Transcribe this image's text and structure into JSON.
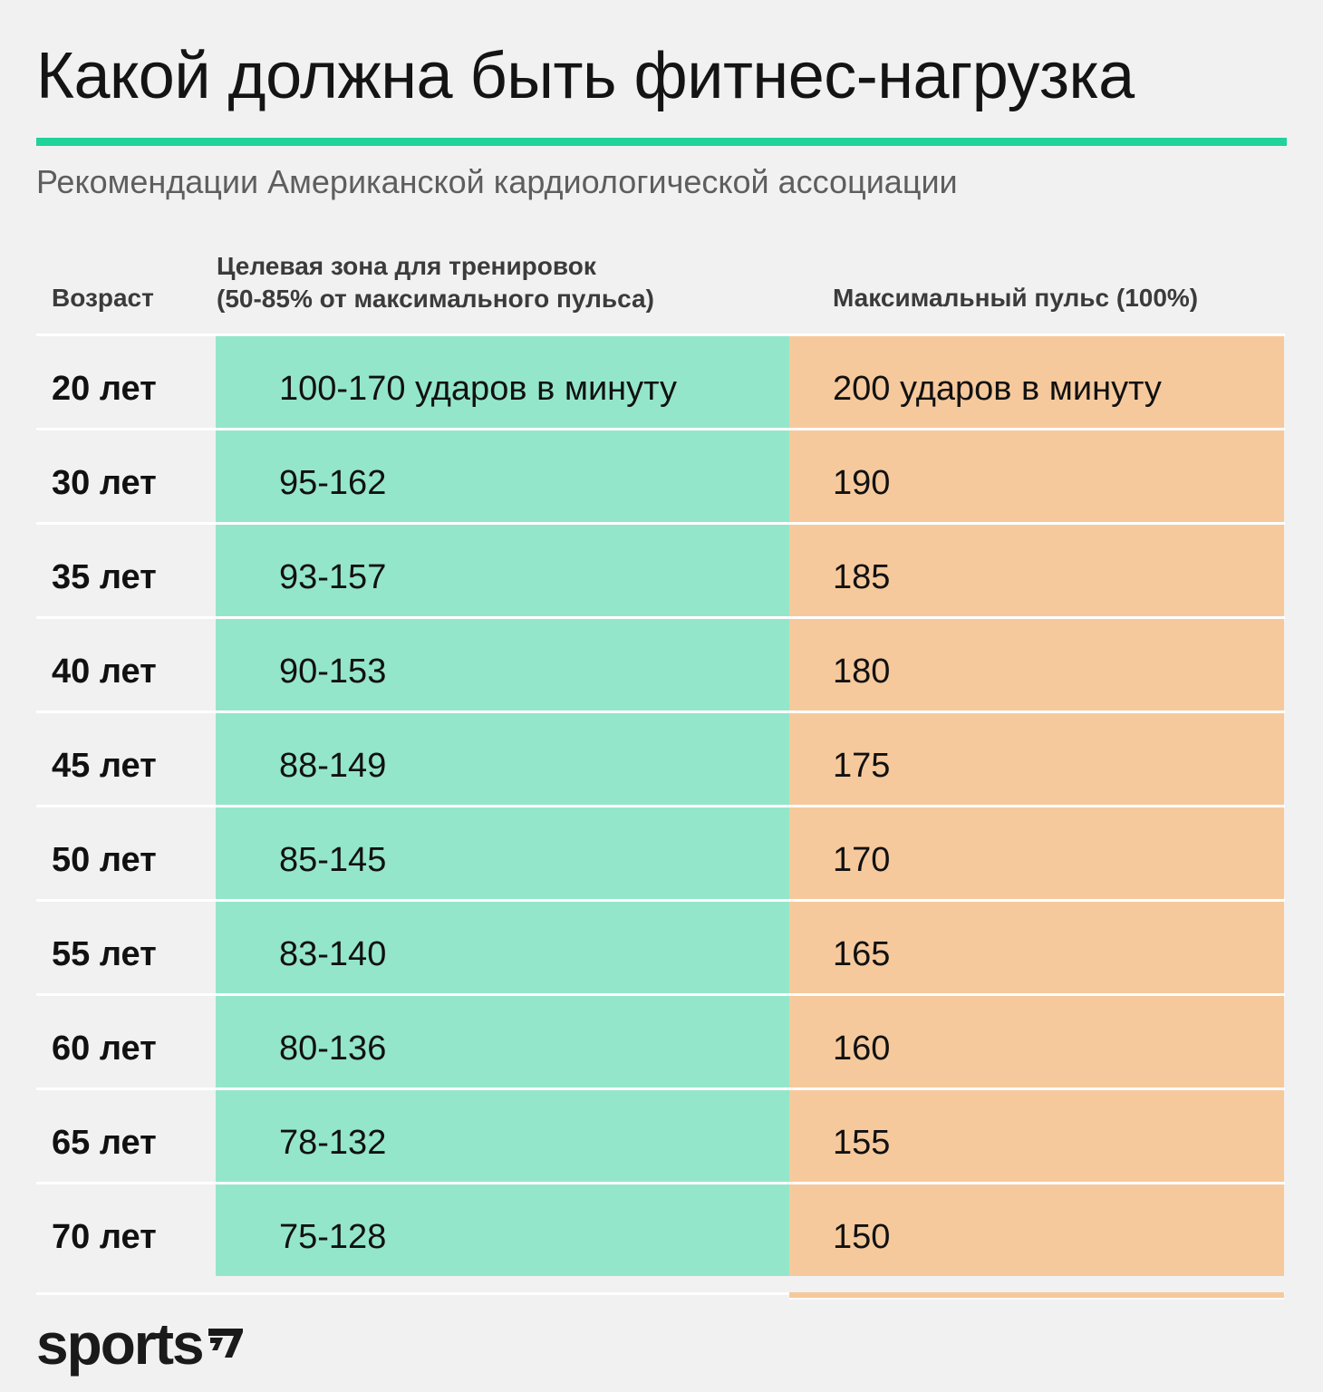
{
  "header": {
    "title": "Какой должна быть фитнес-нагрузка",
    "subtitle": "Рекомендации Американской кардиологической ассоциации"
  },
  "colors": {
    "accent": "#1fd39a",
    "zone_fill": "#94e6cb",
    "max_fill": "#f6c99c",
    "background": "#f1f1f1"
  },
  "table": {
    "headers": {
      "age": "Возраст",
      "zone_line1": "Целевая зона для тренировок",
      "zone_line2": "(50-85% от максимального пульса)",
      "max": "Максимальный пульс (100%)"
    },
    "rows": [
      {
        "age": "20 лет",
        "zone": "100-170 ударов в минуту",
        "max": "200 ударов в минуту"
      },
      {
        "age": "30 лет",
        "zone": "95-162",
        "max": "190"
      },
      {
        "age": "35 лет",
        "zone": "93-157",
        "max": "185"
      },
      {
        "age": "40 лет",
        "zone": "90-153",
        "max": "180"
      },
      {
        "age": "45 лет",
        "zone": "88-149",
        "max": "175"
      },
      {
        "age": "50 лет",
        "zone": "85-145",
        "max": "170"
      },
      {
        "age": "55 лет",
        "zone": "83-140",
        "max": "165"
      },
      {
        "age": "60 лет",
        "zone": "80-136",
        "max": "160"
      },
      {
        "age": "65 лет",
        "zone": "78-132",
        "max": "155"
      },
      {
        "age": "70 лет",
        "zone": "75-128",
        "max": "150"
      }
    ]
  },
  "footer": {
    "logo_text": "sports"
  }
}
